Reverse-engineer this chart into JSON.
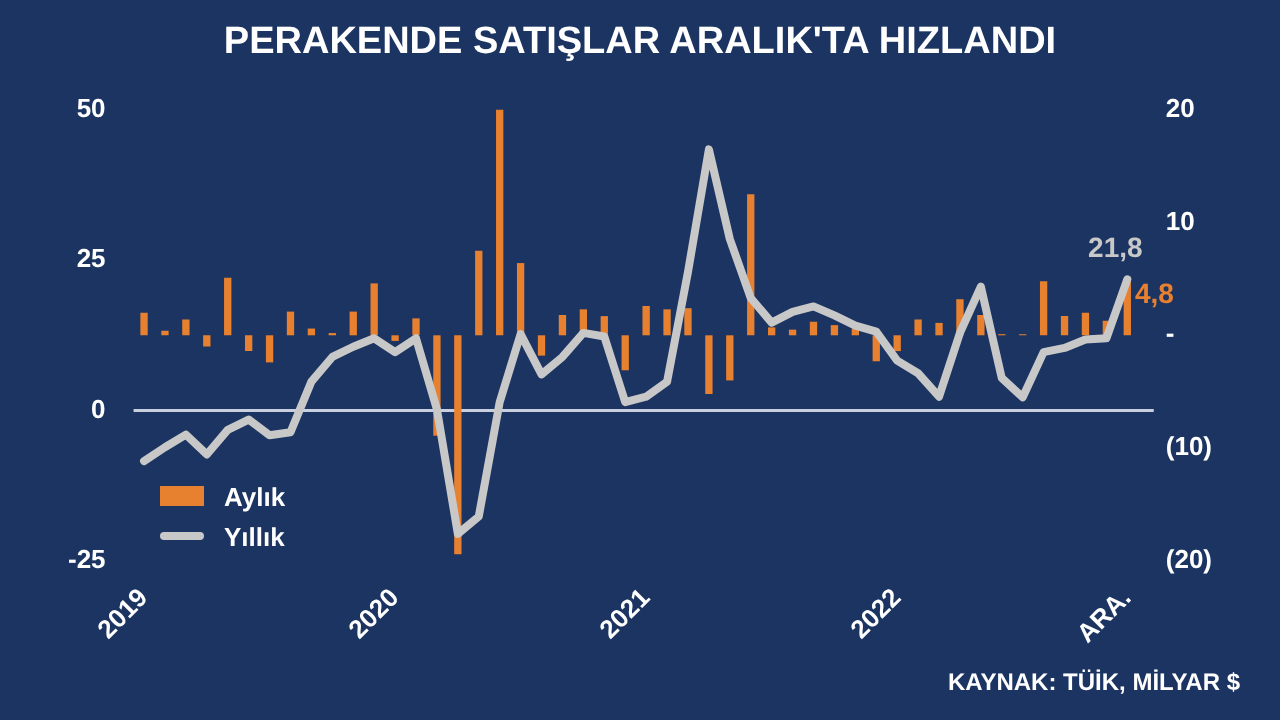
{
  "chart_data": {
    "type": "bar",
    "title": "PERAKENDE SATIŞLAR ARALIK'TA HIZLANDI",
    "categories": [
      "2019",
      null,
      null,
      null,
      null,
      null,
      null,
      null,
      null,
      null,
      null,
      null,
      "2020",
      null,
      null,
      null,
      null,
      null,
      null,
      null,
      null,
      null,
      null,
      null,
      "2021",
      null,
      null,
      null,
      null,
      null,
      null,
      null,
      null,
      null,
      null,
      null,
      "2022",
      null,
      null,
      null,
      null,
      null,
      null,
      null,
      null,
      null,
      null,
      "ARA."
    ],
    "series": [
      {
        "name": "Aylık",
        "axis": "y2",
        "color": "#e8812f",
        "values": [
          2.0,
          0.4,
          1.4,
          -1.0,
          5.1,
          -1.4,
          -2.4,
          2.1,
          0.6,
          0.2,
          2.1,
          4.6,
          -0.5,
          1.5,
          -8.9,
          -19.4,
          7.5,
          20.0,
          6.4,
          -1.8,
          1.8,
          2.3,
          1.7,
          -3.1,
          2.6,
          2.3,
          2.4,
          -5.2,
          -4.0,
          12.5,
          0.7,
          0.5,
          1.2,
          0.9,
          0.6,
          -2.3,
          -1.4,
          1.4,
          1.1,
          3.2,
          1.8,
          0.1,
          0.1,
          4.8,
          1.7,
          2.0,
          1.3,
          4.8
        ],
        "value_labels": [
          null,
          null,
          null,
          null,
          null,
          null,
          null,
          null,
          null,
          null,
          null,
          null,
          null,
          null,
          null,
          null,
          null,
          null,
          null,
          null,
          null,
          null,
          null,
          null,
          null,
          null,
          null,
          null,
          null,
          null,
          null,
          null,
          null,
          null,
          null,
          null,
          null,
          null,
          null,
          null,
          null,
          null,
          null,
          null,
          null,
          null,
          null,
          "4,8"
        ]
      },
      {
        "name": "Yıllık",
        "type": "line",
        "color": "#c8c8c8",
        "values": [
          -8.4,
          -6.1,
          -4.0,
          -7.3,
          -3.2,
          -1.5,
          -4.1,
          -3.6,
          4.8,
          8.9,
          10.6,
          12.0,
          9.7,
          12.0,
          0.2,
          -20.5,
          -17.6,
          1.4,
          12.7,
          6.0,
          8.9,
          12.9,
          12.3,
          1.4,
          2.3,
          4.8,
          23,
          43.4,
          28.5,
          18.7,
          14.6,
          16.4,
          17.3,
          15.8,
          14.1,
          13.1,
          8.3,
          6.2,
          2.3,
          12.9,
          20.6,
          5.4,
          2.2,
          9.7,
          10.4,
          11.8,
          12.0,
          21.8
        ],
        "value_labels": [
          null,
          null,
          null,
          null,
          null,
          null,
          null,
          null,
          null,
          null,
          null,
          null,
          null,
          null,
          null,
          null,
          null,
          null,
          null,
          null,
          null,
          null,
          null,
          null,
          null,
          null,
          null,
          null,
          null,
          null,
          null,
          null,
          null,
          null,
          null,
          null,
          null,
          null,
          null,
          null,
          null,
          null,
          null,
          null,
          null,
          null,
          null,
          "21,8"
        ]
      }
    ],
    "ylim": [
      -25,
      50
    ],
    "yticks": [
      -25,
      0,
      25,
      50
    ],
    "y2lim": [
      -20,
      20
    ],
    "y2ticks": [
      20,
      10,
      {
        "value": 0,
        "label": "-"
      },
      {
        "value": -10,
        "label": "(10)"
      },
      {
        "value": -20,
        "label": "(20)"
      }
    ],
    "ref_lines": [
      {
        "axis": "y",
        "value": 0,
        "color": "#c8d0e0"
      }
    ],
    "grid": false,
    "legend": "bottom left",
    "marker": "none",
    "line_style": "solid",
    "annotations": [
      "KAYNAK: TÜİK, MİLYAR $"
    ]
  }
}
